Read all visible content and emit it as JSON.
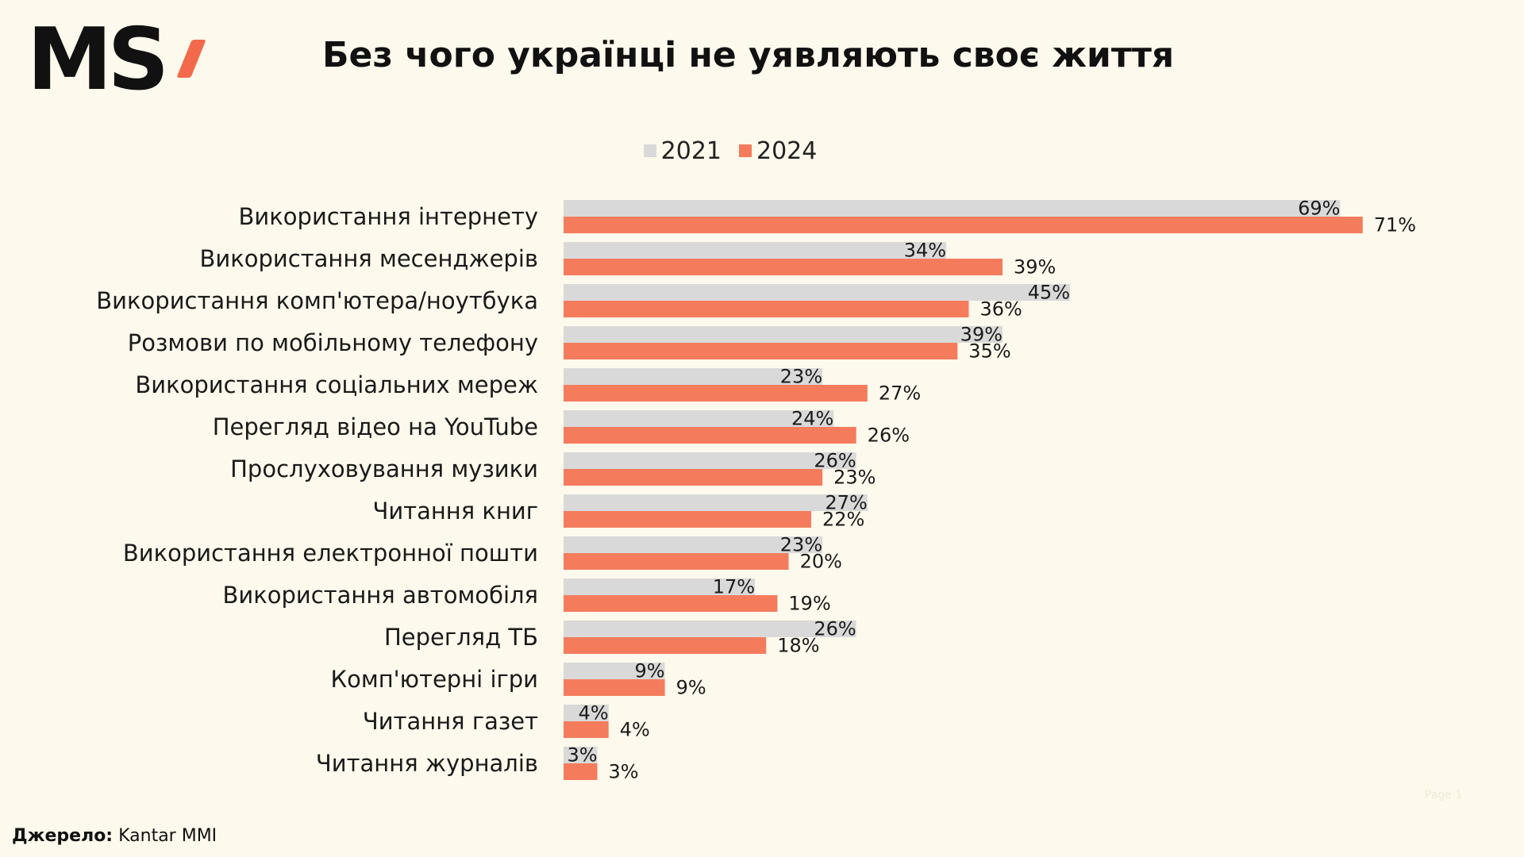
{
  "logo": {
    "text": "MS",
    "accent_color": "#f26a4b"
  },
  "header": {
    "title": "Без чого українці не уявляють своє життя"
  },
  "footer": {
    "source_label": "Джерело:",
    "source_value": "Kantar MMI",
    "page_mark": "Page 1"
  },
  "chart_data": {
    "type": "bar",
    "orientation": "horizontal",
    "title": "Без чого українці не уявляють своє життя",
    "categories": [
      "Використання інтернету",
      "Використання месенджерів",
      "Використання комп'ютера/ноутбука",
      "Розмови по мобільному телефону",
      "Використання соціальних мереж",
      "Перегляд відео на YouTube",
      "Прослуховування музики",
      "Читання книг",
      "Використання електронної пошти",
      "Використання автомобіля",
      "Перегляд ТБ",
      "Комп'ютерні ігри",
      "Читання газет",
      "Читання журналів"
    ],
    "series": [
      {
        "name": "2021",
        "color": "#d9d9d9",
        "values": [
          69,
          34,
          45,
          39,
          23,
          24,
          26,
          27,
          23,
          17,
          26,
          9,
          4,
          3
        ]
      },
      {
        "name": "2024",
        "color": "#f47c5d",
        "values": [
          71,
          39,
          36,
          35,
          27,
          26,
          23,
          22,
          20,
          19,
          18,
          9,
          4,
          3
        ]
      }
    ],
    "value_suffix": "%",
    "legend_position": "top-center",
    "grid": false
  }
}
